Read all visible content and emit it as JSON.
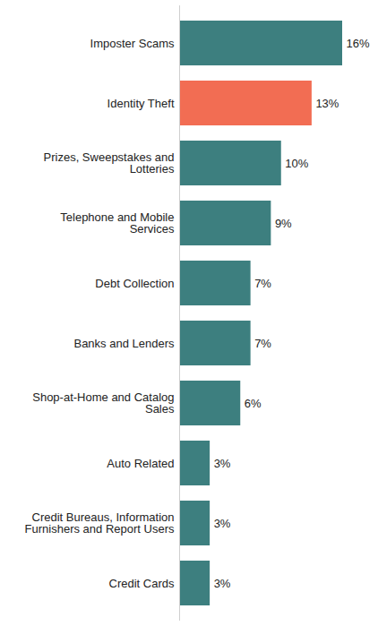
{
  "chart_data": {
    "type": "bar",
    "orientation": "horizontal",
    "categories": [
      "Imposter Scams",
      "Identity Theft",
      "Prizes, Sweepstakes and Lotteries",
      "Telephone and Mobile Services",
      "Debt Collection",
      "Banks and Lenders",
      "Shop-at-Home and Catalog Sales",
      "Auto Related",
      "Credit Bureaus, Information Furnishers and Report Users",
      "Credit Cards"
    ],
    "values": [
      16,
      13,
      10,
      9,
      7,
      7,
      6,
      3,
      3,
      3
    ],
    "value_labels": [
      "16%",
      "13%",
      "10%",
      "9%",
      "7%",
      "7%",
      "6%",
      "3%",
      "3%",
      "3%"
    ],
    "colors": [
      "#3d7f7f",
      "#f26d53",
      "#3d7f7f",
      "#3d7f7f",
      "#3d7f7f",
      "#3d7f7f",
      "#3d7f7f",
      "#3d7f7f",
      "#3d7f7f",
      "#3d7f7f"
    ],
    "xlim": [
      0,
      16
    ],
    "data_labels": true,
    "tick_labels": "y",
    "grid": false
  }
}
